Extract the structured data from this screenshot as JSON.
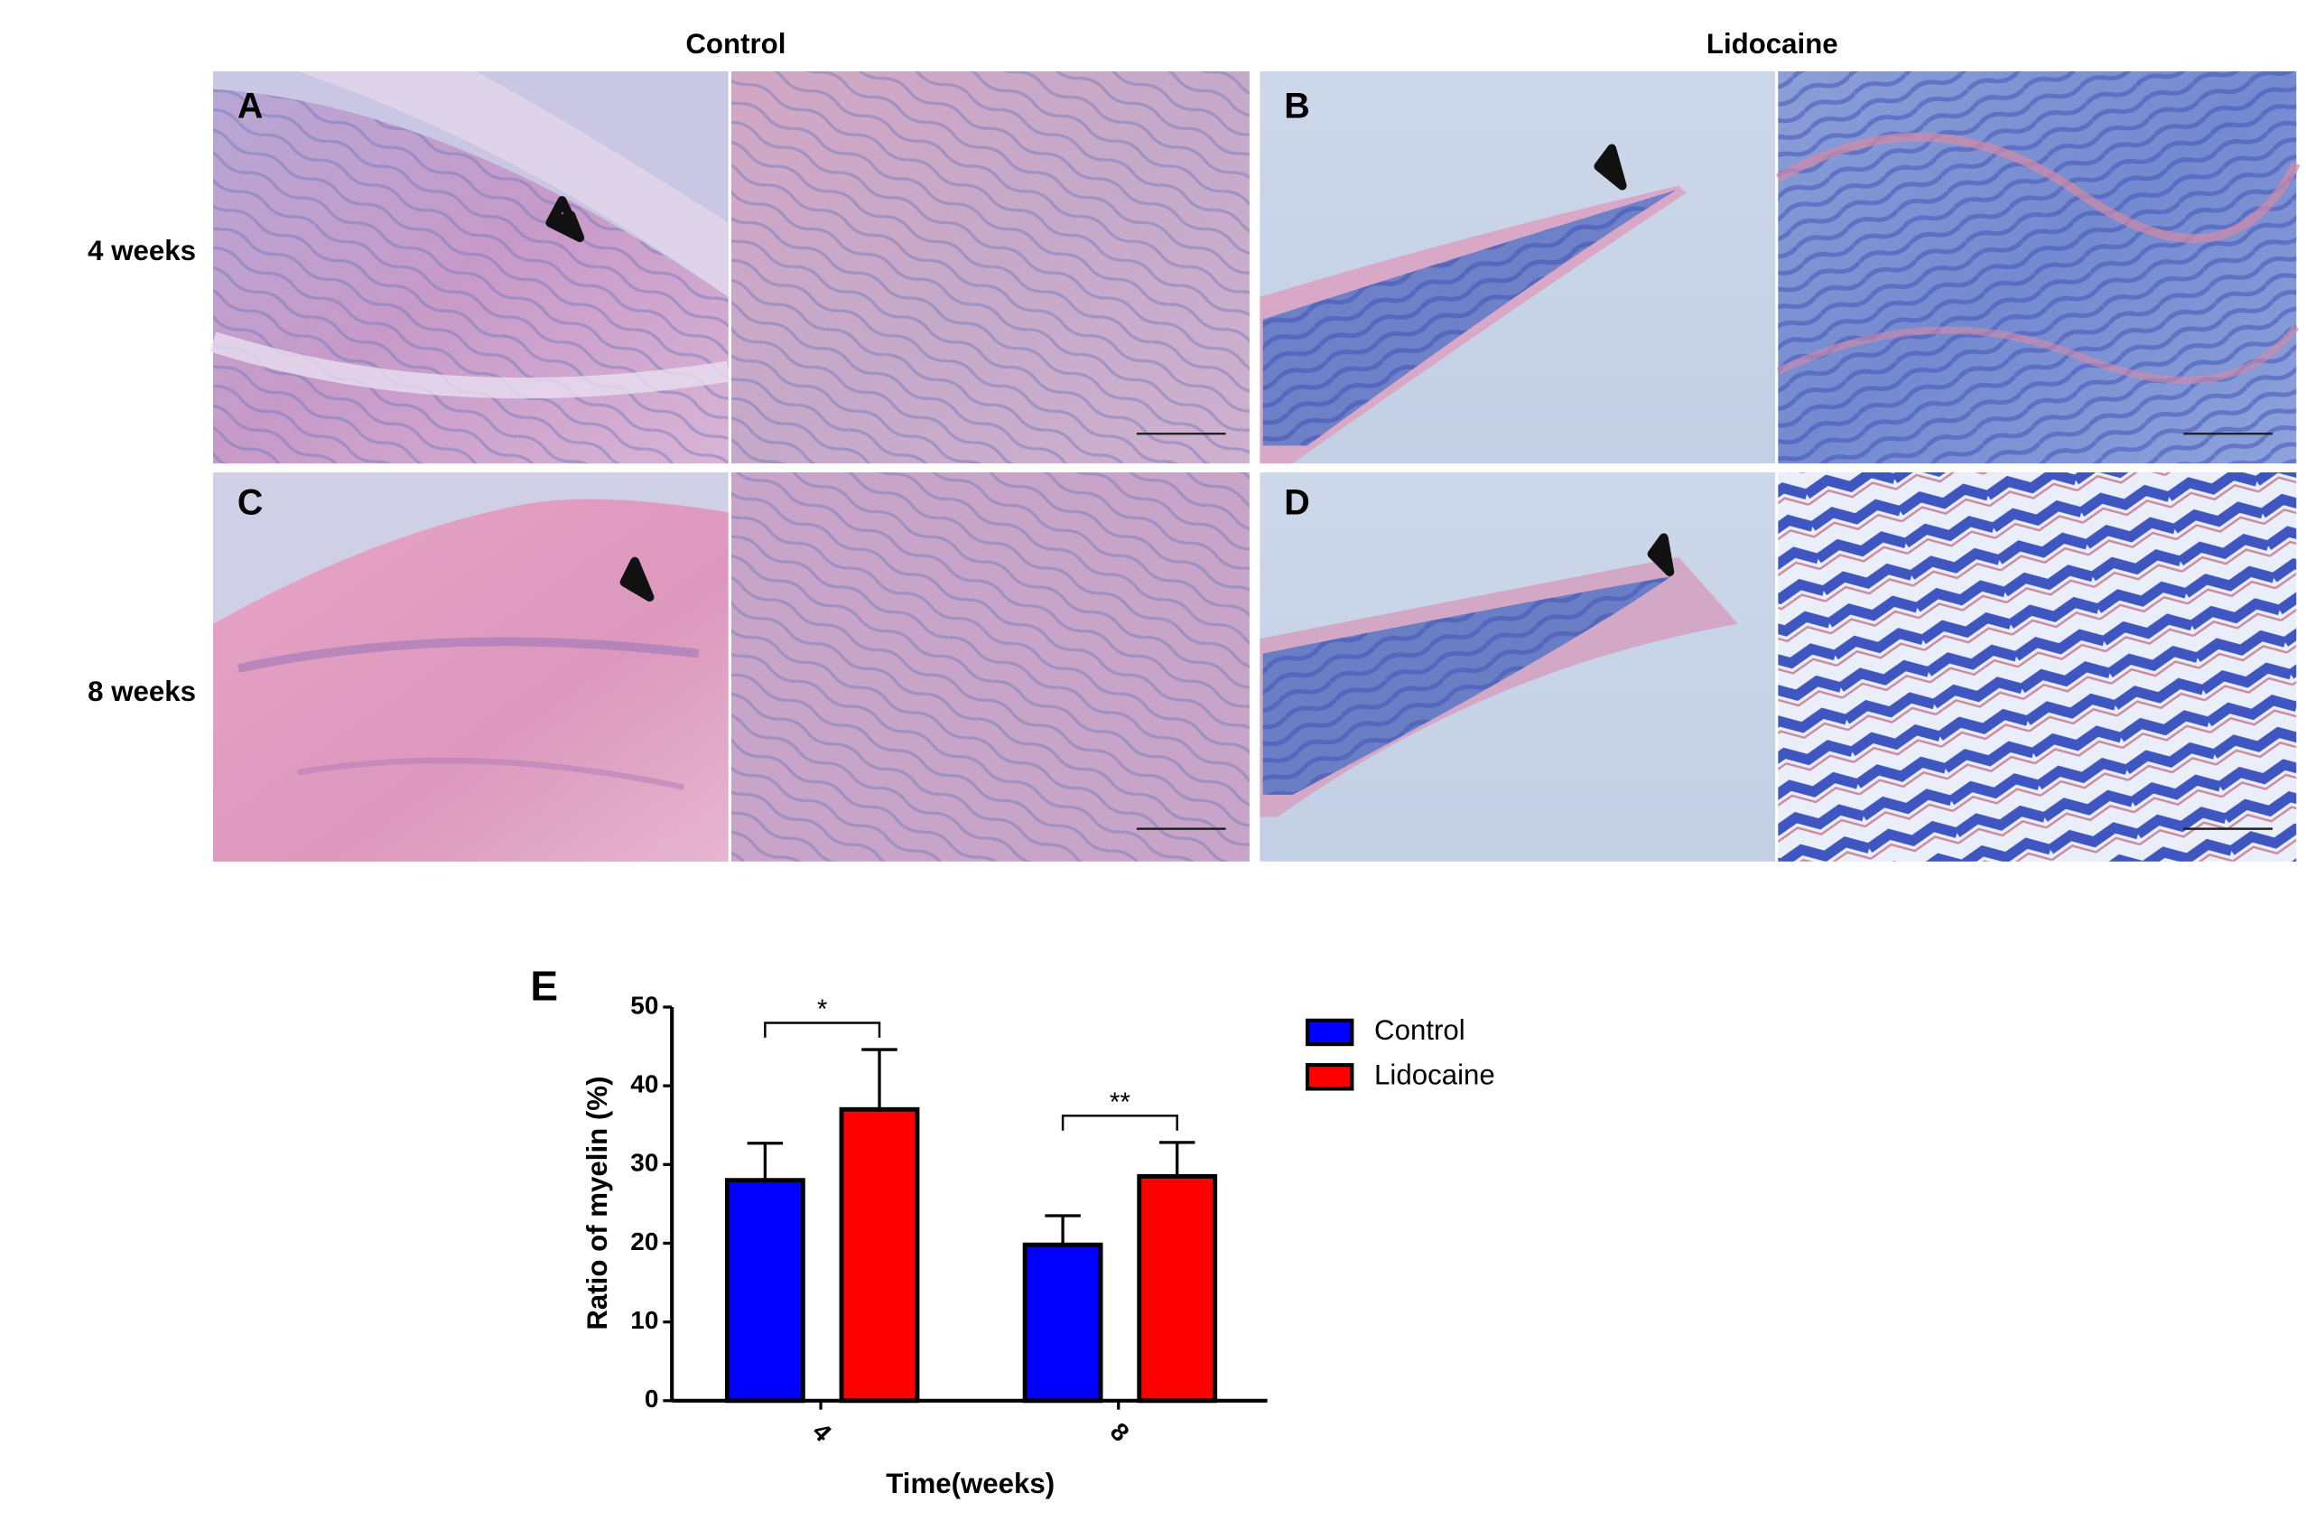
{
  "figure": {
    "column_titles": [
      "Control",
      "Lidocaine"
    ],
    "row_labels": [
      "4 weeks",
      "8 weeks"
    ],
    "panel_labels": [
      "A",
      "B",
      "C",
      "D"
    ]
  },
  "chart_data": {
    "type": "bar",
    "panel_label": "E",
    "x_label": "Time(weeks)",
    "y_label": "Ratio of myelin (%)",
    "categories": [
      "4",
      "8"
    ],
    "series": [
      {
        "name": "Control",
        "color": "#0000ff",
        "values": [
          28,
          19.8
        ],
        "errors": [
          4.7,
          3.7
        ]
      },
      {
        "name": "Lidocaine",
        "color": "#ff0000",
        "values": [
          37,
          28.5
        ],
        "errors": [
          7.6,
          4.3
        ]
      }
    ],
    "significance": [
      "*",
      "**"
    ],
    "ylim": [
      0,
      50
    ],
    "yticks": [
      0,
      10,
      20,
      30,
      40,
      50
    ]
  }
}
